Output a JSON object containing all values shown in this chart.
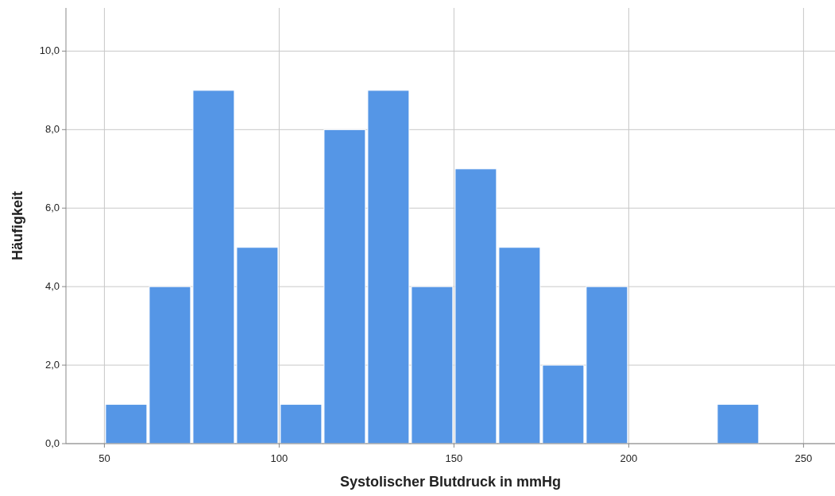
{
  "chart_data": {
    "type": "histogram",
    "xlabel": "Systolischer Blutdruck in mmHg",
    "ylabel": "Häufigkeit",
    "bins": [
      50,
      62.5,
      75,
      87.5,
      100,
      112.5,
      125,
      137.5,
      150,
      162.5,
      175,
      187.5,
      200,
      212.5,
      225,
      237.5,
      250
    ],
    "values": [
      1,
      4,
      9,
      5,
      1,
      8,
      9,
      4,
      7,
      5,
      2,
      4,
      0,
      0,
      1,
      0
    ],
    "color": "#5596e6",
    "xlim": [
      39,
      259
    ],
    "xticks": [
      50,
      100,
      150,
      200,
      250
    ],
    "ylim": [
      0,
      11.1
    ],
    "yticks": [
      {
        "value": 0,
        "label": "0,0"
      },
      {
        "value": 2,
        "label": "2,0"
      },
      {
        "value": 4,
        "label": "4,0"
      },
      {
        "value": 6,
        "label": "6,0"
      },
      {
        "value": 8,
        "label": "8,0"
      },
      {
        "value": 10,
        "label": "10,0"
      }
    ],
    "grid": true
  }
}
